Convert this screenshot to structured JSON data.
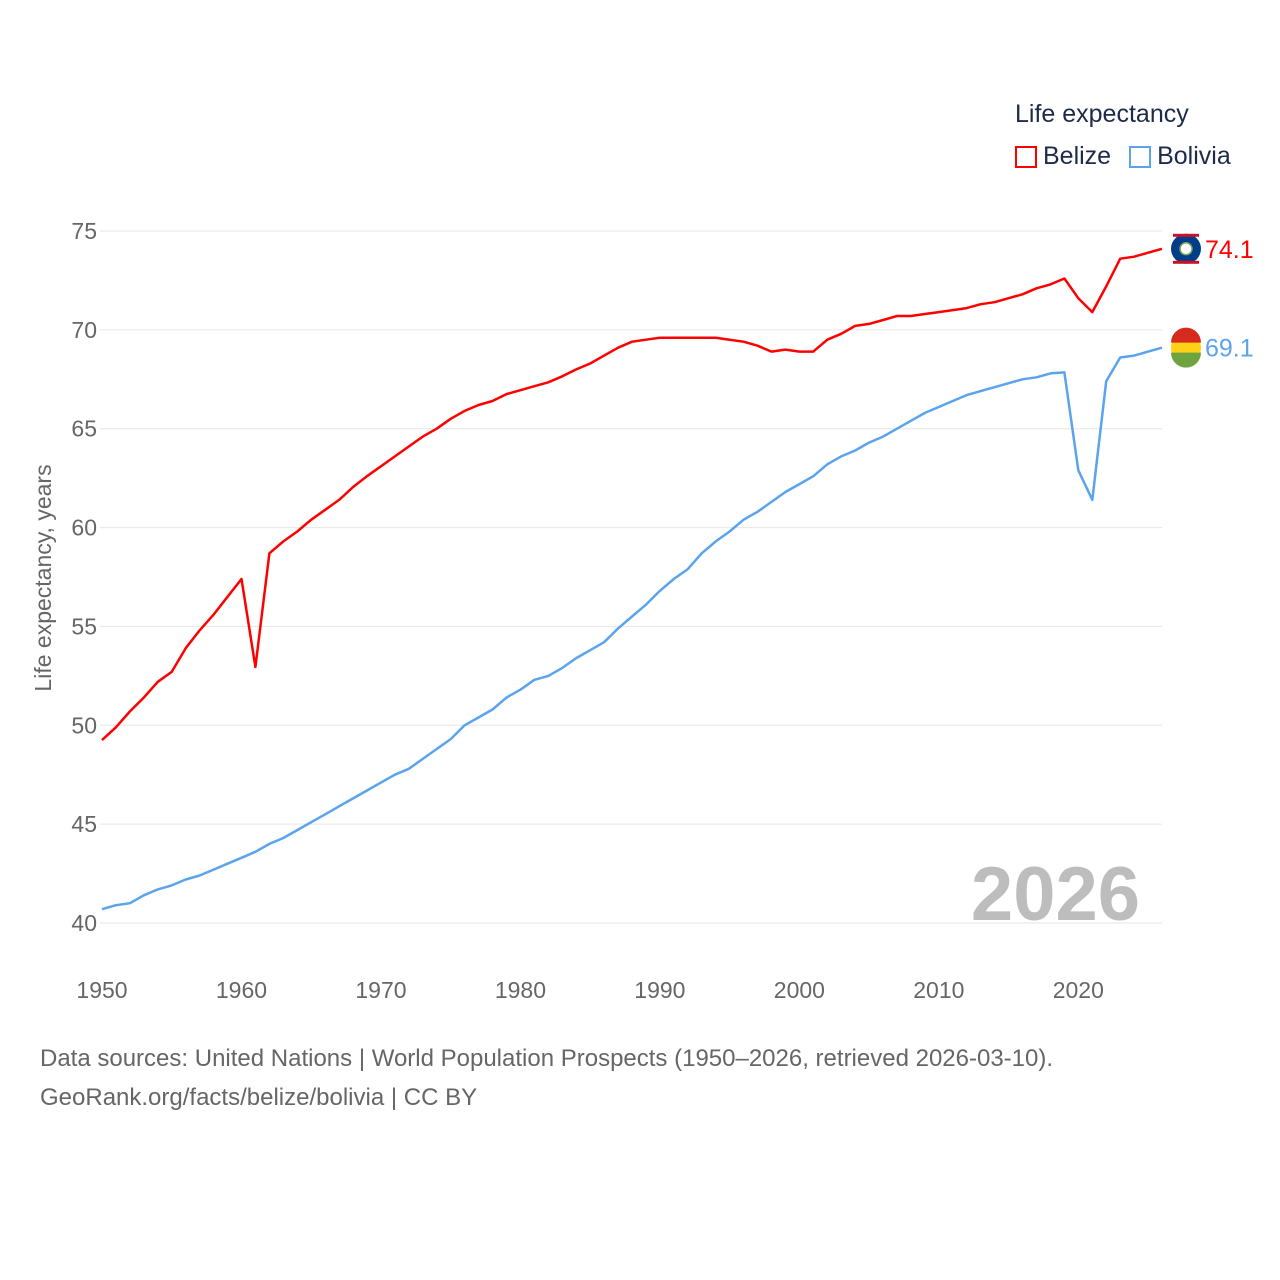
{
  "chart_data": {
    "type": "line",
    "title": "",
    "xlabel": "",
    "ylabel": "Life expectancy, years",
    "xlim": [
      1950,
      2026
    ],
    "ylim": [
      40,
      75
    ],
    "x_ticks": [
      "1950",
      "1960",
      "1970",
      "1980",
      "1990",
      "2000",
      "2010",
      "2020"
    ],
    "y_ticks": [
      "40",
      "45",
      "50",
      "55",
      "60",
      "65",
      "70",
      "75"
    ],
    "grid": true,
    "legend_title": "Life expectancy",
    "legend_position": "top-right",
    "year_label": "2026",
    "x": [
      1950,
      1951,
      1952,
      1953,
      1954,
      1955,
      1956,
      1957,
      1958,
      1959,
      1960,
      1961,
      1962,
      1963,
      1964,
      1965,
      1966,
      1967,
      1968,
      1969,
      1970,
      1971,
      1972,
      1973,
      1974,
      1975,
      1976,
      1977,
      1978,
      1979,
      1980,
      1981,
      1982,
      1983,
      1984,
      1985,
      1986,
      1987,
      1988,
      1989,
      1990,
      1991,
      1992,
      1993,
      1994,
      1995,
      1996,
      1997,
      1998,
      1999,
      2000,
      2001,
      2002,
      2003,
      2004,
      2005,
      2006,
      2007,
      2008,
      2009,
      2010,
      2011,
      2012,
      2013,
      2014,
      2015,
      2016,
      2017,
      2018,
      2019,
      2020,
      2021,
      2022,
      2023,
      2024,
      2025,
      2026
    ],
    "series": [
      {
        "name": "Belize",
        "color": "#ff0000",
        "end_label": "74.1",
        "values": [
          49.25,
          49.9,
          50.7,
          51.4,
          52.2,
          52.7,
          53.9,
          54.8,
          55.6,
          56.5,
          57.4,
          52.95,
          58.7,
          59.3,
          59.8,
          60.4,
          60.9,
          61.4,
          62.05,
          62.6,
          63.1,
          63.6,
          64.1,
          64.6,
          65.0,
          65.5,
          65.9,
          66.2,
          66.4,
          66.75,
          66.95,
          67.15,
          67.35,
          67.65,
          68.0,
          68.3,
          68.7,
          69.1,
          69.4,
          69.5,
          69.6,
          69.6,
          69.6,
          69.6,
          69.6,
          69.5,
          69.4,
          69.2,
          68.9,
          69.0,
          68.9,
          68.9,
          69.5,
          69.8,
          70.2,
          70.3,
          70.5,
          70.7,
          70.7,
          70.8,
          70.9,
          71.0,
          71.1,
          71.3,
          71.4,
          71.6,
          71.8,
          72.1,
          72.3,
          72.6,
          71.6,
          70.9,
          72.2,
          73.6,
          73.7,
          73.9,
          74.1
        ]
      },
      {
        "name": "Bolivia",
        "color": "#5ba3ec",
        "end_label": "69.1",
        "values": [
          40.7,
          40.9,
          41.0,
          41.4,
          41.7,
          41.9,
          42.2,
          42.4,
          42.7,
          43.0,
          43.3,
          43.6,
          44.0,
          44.3,
          44.7,
          45.1,
          45.5,
          45.9,
          46.3,
          46.7,
          47.1,
          47.5,
          47.8,
          48.3,
          48.8,
          49.3,
          50.0,
          50.4,
          50.8,
          51.4,
          51.8,
          52.3,
          52.5,
          52.9,
          53.4,
          53.8,
          54.2,
          54.9,
          55.5,
          56.1,
          56.8,
          57.4,
          57.9,
          58.7,
          59.3,
          59.8,
          60.4,
          60.8,
          61.3,
          61.8,
          62.2,
          62.6,
          63.2,
          63.6,
          63.9,
          64.3,
          64.6,
          65.0,
          65.4,
          65.8,
          66.1,
          66.4,
          66.7,
          66.9,
          67.1,
          67.3,
          67.5,
          67.6,
          67.8,
          67.85,
          62.9,
          61.4,
          67.4,
          68.6,
          68.7,
          68.9,
          69.1
        ]
      }
    ]
  },
  "footer": {
    "sources": "Data sources: United Nations | World Population Prospects (1950–2026, retrieved 2026-03-10).",
    "link": "GeoRank.org/facts/belize/bolivia | CC BY"
  }
}
